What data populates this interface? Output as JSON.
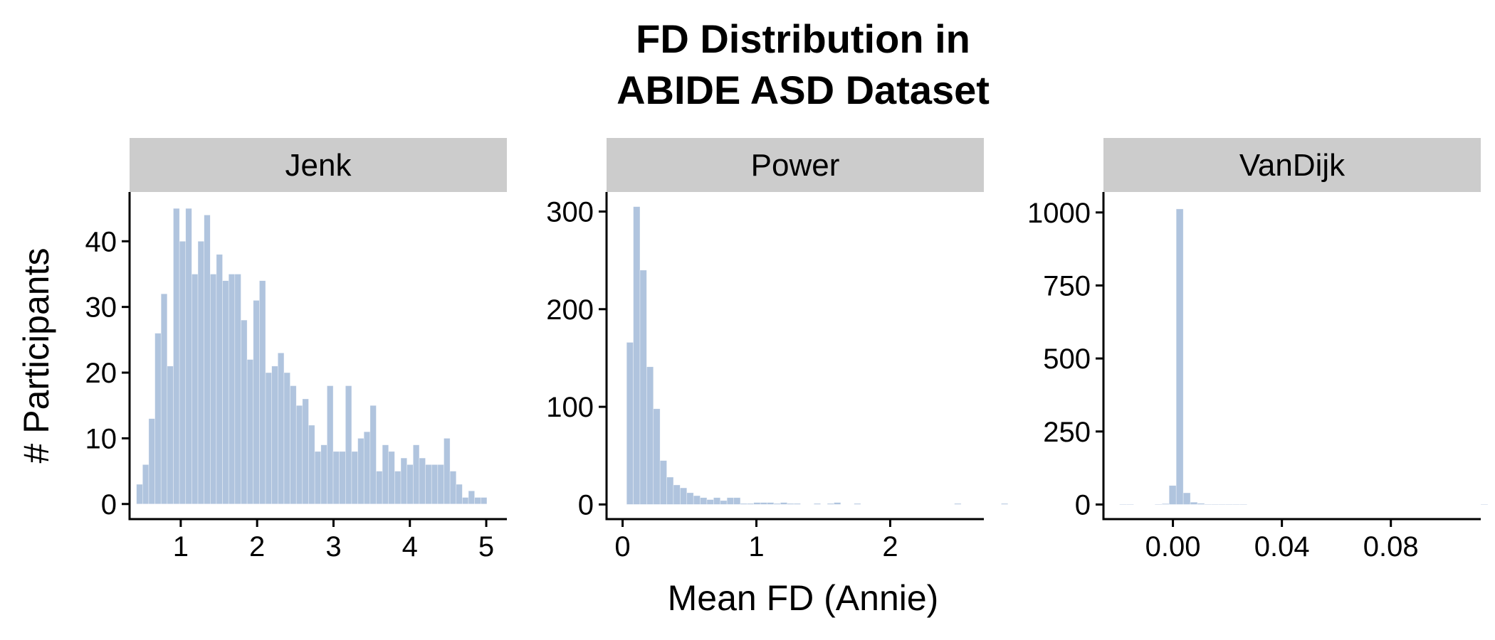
{
  "chart_data": {
    "type": "bar",
    "layout": "faceted-histogram",
    "title_lines": [
      "FD Distribution in",
      "ABIDE ASD Dataset"
    ],
    "xlabel": "Mean FD (Annie)",
    "ylabel": "# Participants",
    "bar_color": "#b0c4de",
    "strip_color": "#cccccc",
    "facets": [
      {
        "label": "Jenk",
        "xlim": [
          0.33,
          5.27
        ],
        "ylim": [
          -2.3,
          47.5
        ],
        "xticks": [
          1,
          2,
          3,
          4,
          5
        ],
        "xtick_labels": [
          "1",
          "2",
          "3",
          "4",
          "5"
        ],
        "yticks": [
          0,
          10,
          20,
          30,
          40
        ],
        "ytick_labels": [
          "0",
          "10",
          "20",
          "30",
          "40"
        ],
        "bin_start": 0.42,
        "bin_width": 0.0805,
        "values": [
          3,
          6,
          13,
          26,
          32,
          21,
          45,
          40,
          45,
          35,
          40,
          44,
          35,
          38,
          34,
          35,
          35,
          28,
          22,
          31,
          34,
          20,
          21,
          23,
          20,
          18,
          15,
          16,
          12,
          8,
          9,
          18,
          8,
          8,
          18,
          8,
          10,
          11,
          15,
          5,
          9,
          8,
          5,
          7,
          6,
          9,
          7,
          6,
          6,
          6,
          10,
          5,
          3,
          1,
          2,
          1,
          1
        ]
      },
      {
        "label": "Power",
        "xlim": [
          -0.12,
          2.7
        ],
        "ylim": [
          -15,
          320
        ],
        "xticks": [
          0,
          1,
          2
        ],
        "xtick_labels": [
          "0",
          "1",
          "2"
        ],
        "yticks": [
          0,
          100,
          200,
          300
        ],
        "ytick_labels": [
          "0",
          "100",
          "200",
          "300"
        ],
        "bin_start": 0.03,
        "bin_width": 0.05,
        "values": [
          166,
          305,
          240,
          141,
          98,
          45,
          28,
          20,
          17,
          12,
          9,
          7,
          5,
          7,
          4,
          7,
          7,
          1,
          1,
          2,
          2,
          2,
          1,
          2,
          1,
          1,
          0,
          0,
          1,
          0,
          1,
          2,
          0,
          0,
          1,
          0,
          0,
          0,
          0,
          0,
          0,
          0,
          0,
          0,
          0,
          0,
          0,
          0,
          0,
          1,
          0,
          0,
          0,
          0,
          0,
          0,
          1,
          0,
          0,
          0,
          0,
          0,
          0
        ]
      },
      {
        "label": "VanDijk",
        "xlim": [
          -0.0255,
          0.113
        ],
        "ylim": [
          -50,
          1070
        ],
        "xticks": [
          0,
          0.04,
          0.08
        ],
        "xtick_labels": [
          "0.00",
          "0.04",
          "0.08"
        ],
        "yticks": [
          0,
          250,
          500,
          750,
          1000
        ],
        "ytick_labels": [
          "0",
          "250",
          "500",
          "750",
          "1000"
        ],
        "bin_start": -0.0196,
        "bin_width": 0.0026,
        "values": [
          1,
          1,
          0,
          0,
          0,
          1,
          3,
          65,
          1012,
          40,
          8,
          4,
          1,
          1,
          1,
          1,
          1,
          1,
          0,
          0,
          0,
          0,
          0,
          0,
          0,
          0,
          0,
          0,
          0,
          0,
          0,
          0,
          0,
          0,
          0,
          0,
          0,
          0,
          0,
          0,
          0,
          0,
          0,
          0,
          0,
          0,
          0,
          0,
          0,
          0,
          0,
          1,
          0
        ]
      }
    ]
  }
}
